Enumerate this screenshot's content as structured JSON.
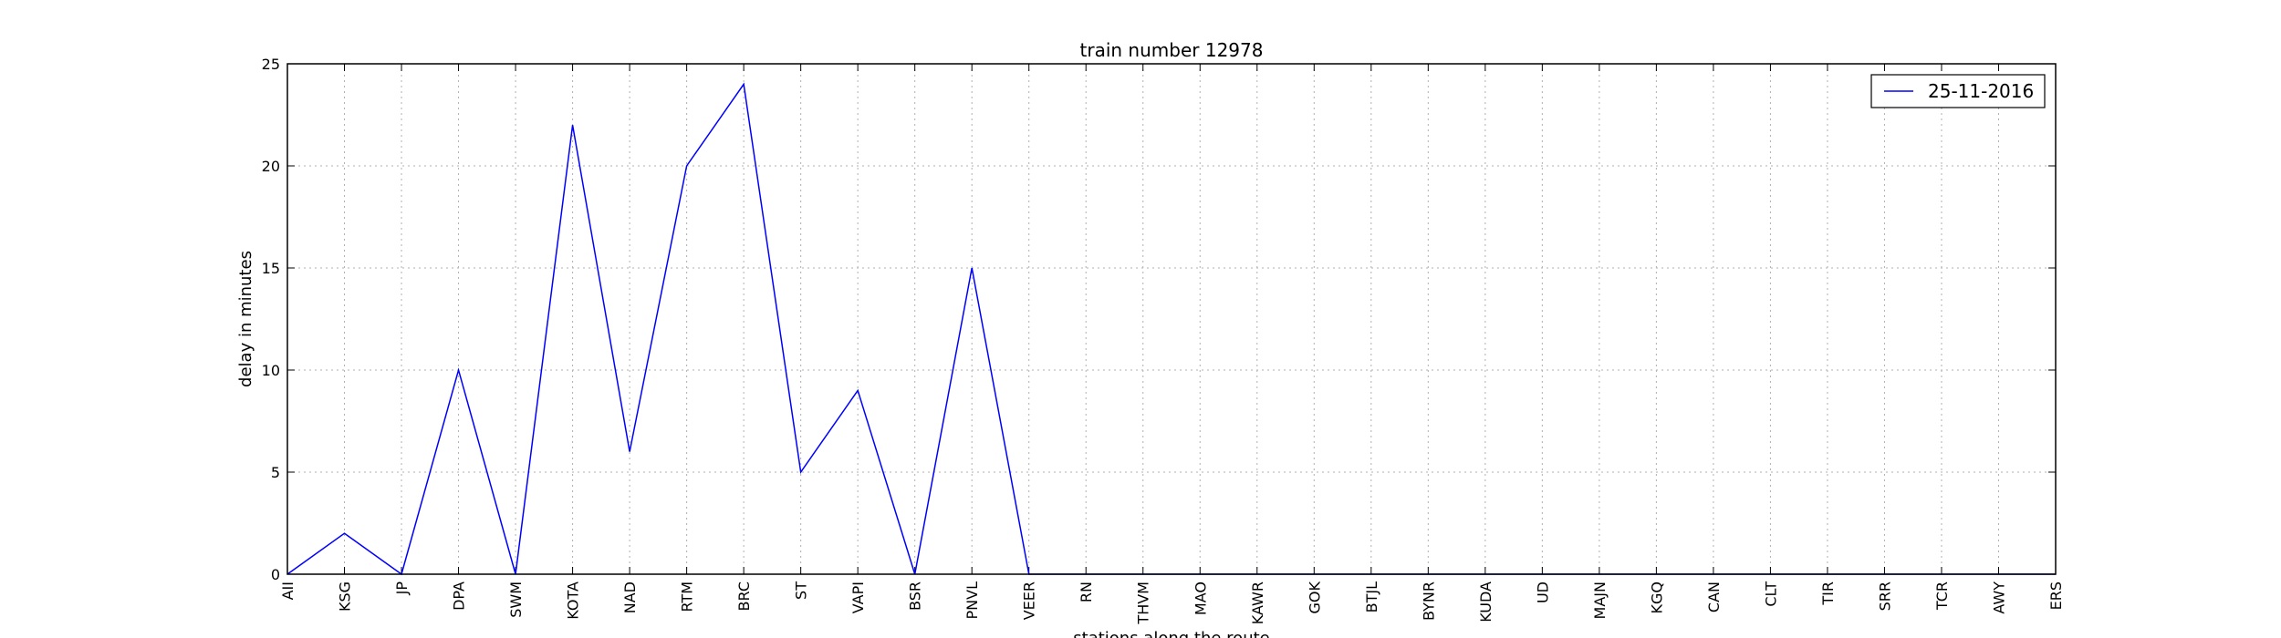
{
  "chart_data": {
    "type": "line",
    "title": "train number 12978",
    "xlabel": "stations along the route",
    "ylabel": "delay in minutes",
    "ylim": [
      0,
      25
    ],
    "yticks": [
      "0",
      "5",
      "10",
      "15",
      "20",
      "25"
    ],
    "categories": [
      "AII",
      "KSG",
      "JP",
      "DPA",
      "SWM",
      "KOTA",
      "NAD",
      "RTM",
      "BRC",
      "ST",
      "VAPI",
      "BSR",
      "PNVL",
      "VEER",
      "RN",
      "THVM",
      "MAO",
      "KAWR",
      "GOK",
      "BTJL",
      "BYNR",
      "KUDA",
      "UD",
      "MAJN",
      "KGQ",
      "CAN",
      "CLT",
      "TIR",
      "SRR",
      "TCR",
      "AWY",
      "ERS"
    ],
    "series": [
      {
        "name": "25-11-2016",
        "color": "#0000ff",
        "values": [
          0,
          2,
          0,
          10,
          0,
          22,
          6,
          20,
          24,
          5,
          9,
          0,
          15,
          0,
          0,
          0,
          0,
          0,
          0,
          0,
          0,
          0,
          0,
          0,
          0,
          0,
          0,
          0,
          0,
          0,
          0,
          0
        ]
      }
    ],
    "grid": true,
    "legend_position": "top-right"
  }
}
